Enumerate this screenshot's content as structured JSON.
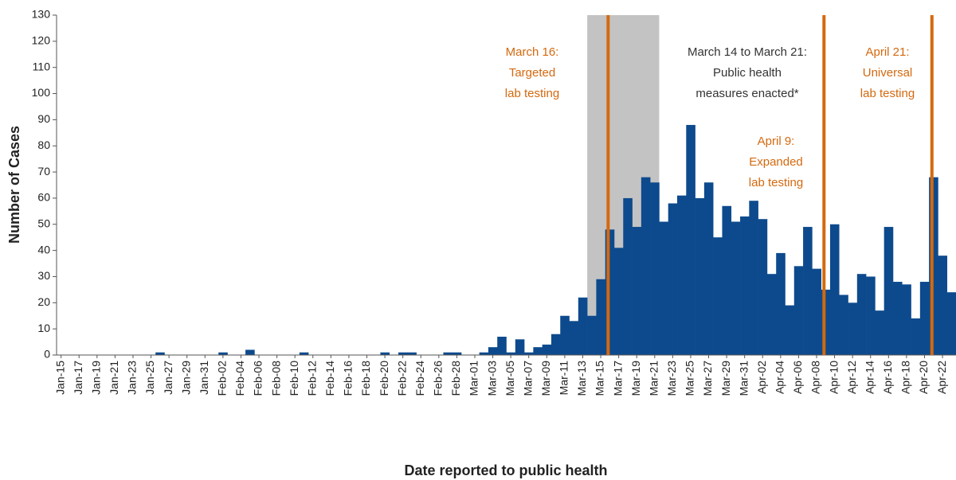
{
  "chart_data": {
    "type": "bar",
    "y_label": "Number of Cases",
    "x_label": "Date reported to public health",
    "categories": [
      "Jan-15",
      null,
      "Jan-17",
      null,
      "Jan-19",
      null,
      "Jan-21",
      null,
      "Jan-23",
      null,
      "Jan-25",
      null,
      "Jan-27",
      null,
      "Jan-29",
      null,
      "Jan-31",
      null,
      "Feb-02",
      null,
      "Feb-04",
      null,
      "Feb-06",
      null,
      "Feb-08",
      null,
      "Feb-10",
      null,
      "Feb-12",
      null,
      "Feb-14",
      null,
      "Feb-16",
      null,
      "Feb-18",
      null,
      "Feb-20",
      null,
      "Feb-22",
      null,
      "Feb-24",
      null,
      "Feb-26",
      null,
      "Feb-28",
      null,
      "Mar-01",
      null,
      "Mar-03",
      null,
      "Mar-05",
      null,
      "Mar-07",
      null,
      "Mar-09",
      null,
      "Mar-11",
      null,
      "Mar-13",
      null,
      "Mar-15",
      null,
      "Mar-17",
      null,
      "Mar-19",
      null,
      "Mar-21",
      null,
      "Mar-23",
      null,
      "Mar-25",
      null,
      "Mar-27",
      null,
      "Mar-29",
      null,
      "Mar-31",
      null,
      "Apr-02",
      null,
      "Apr-04",
      null,
      "Apr-06",
      null,
      "Apr-08",
      null,
      "Apr-10",
      null,
      "Apr-12",
      null,
      "Apr-14",
      null,
      "Apr-16",
      null,
      "Apr-18",
      null,
      "Apr-20",
      null,
      "Apr-22",
      null
    ],
    "values": [
      0,
      0,
      0,
      0,
      0,
      0,
      0,
      0,
      0,
      0,
      0,
      1,
      0,
      0,
      0,
      0,
      0,
      0,
      1,
      0,
      0,
      2,
      0,
      0,
      0,
      0,
      0,
      1,
      0,
      0,
      0,
      0,
      0,
      0,
      0,
      0,
      1,
      0,
      1,
      1,
      0,
      0,
      0,
      1,
      1,
      0,
      0,
      1,
      3,
      7,
      1,
      6,
      1,
      3,
      4,
      8,
      15,
      13,
      22,
      15,
      29,
      48,
      41,
      60,
      49,
      68,
      66,
      51,
      58,
      61,
      88,
      60,
      66,
      45,
      57,
      51,
      53,
      59,
      52,
      31,
      39,
      19,
      34,
      49,
      33,
      25,
      50,
      23,
      20,
      31,
      30,
      17,
      49,
      28,
      27,
      14,
      28,
      68,
      38,
      24
    ],
    "color": "#0d4a8d",
    "ylim": [
      0,
      130
    ],
    "yticks": [
      0,
      10,
      20,
      30,
      40,
      50,
      60,
      70,
      80,
      90,
      100,
      110,
      120,
      130
    ],
    "grid": false,
    "event_color": "#d4690f",
    "shade_color": "#c3c3c3",
    "annotations": [
      {
        "lines": [
          "March 16:",
          "Targeted",
          "lab testing"
        ],
        "color": "#d4690f"
      },
      {
        "lines": [
          "March 14 to March 21:",
          "Public health",
          "measures enacted*"
        ],
        "color": "#333333"
      },
      {
        "lines": [
          "April 9:",
          "Expanded",
          "lab testing"
        ],
        "color": "#d4690f"
      },
      {
        "lines": [
          "April 21:",
          "Universal",
          "lab testing"
        ],
        "color": "#d4690f"
      }
    ]
  }
}
